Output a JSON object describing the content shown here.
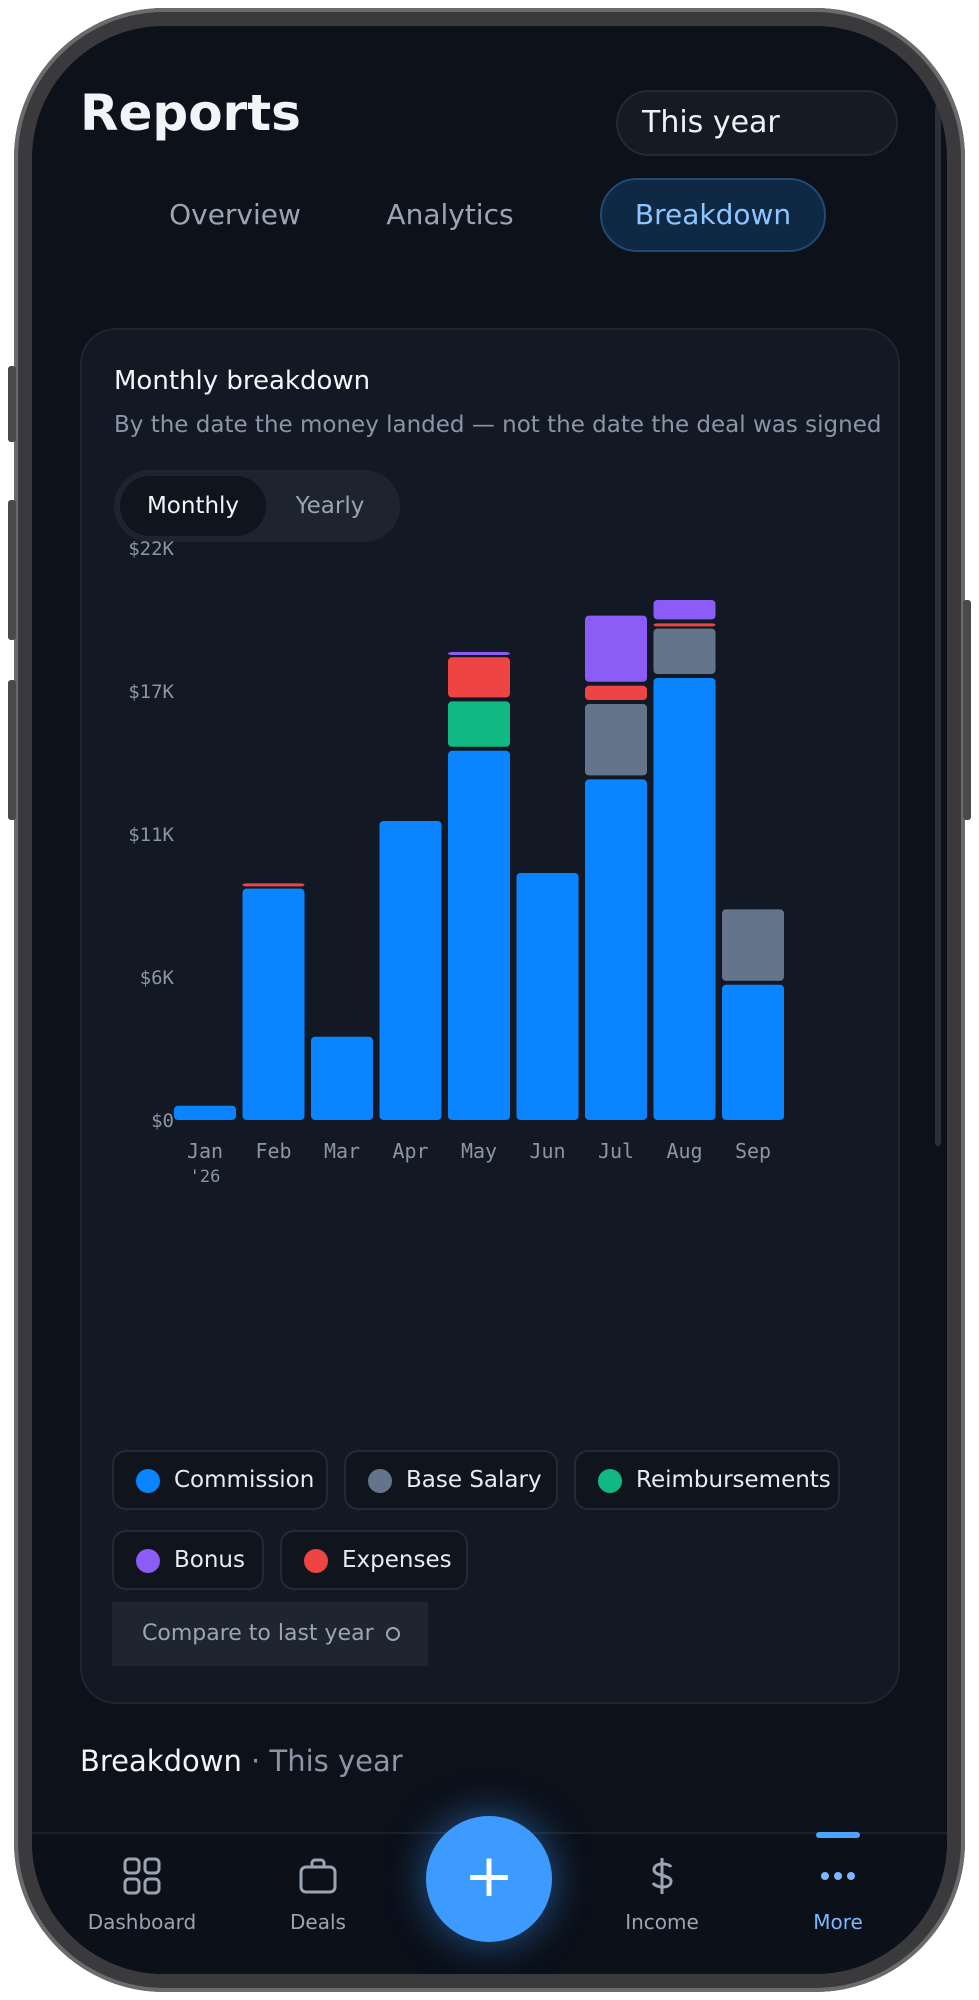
{
  "header": {
    "title": "Reports",
    "range": "This year"
  },
  "tabs": [
    {
      "label": "Overview",
      "active": false
    },
    {
      "label": "Analytics",
      "active": false
    },
    {
      "label": "Breakdown",
      "active": true
    }
  ],
  "card": {
    "title": "Monthly breakdown",
    "subtitle": "By the date the money landed — not the date the deal was signed",
    "segments": [
      "Monthly",
      "Yearly"
    ],
    "compare_label": "Compare to last year"
  },
  "legend": [
    {
      "label": "Commission",
      "color": "#0a84ff"
    },
    {
      "label": "Base Salary",
      "color": "#64748b"
    },
    {
      "label": "Reimbursements",
      "color": "#10b981"
    },
    {
      "label": "Bonus",
      "color": "#8b5cf6"
    },
    {
      "label": "Expenses",
      "color": "#ef4444"
    }
  ],
  "chart_data": {
    "type": "bar",
    "stacked": true,
    "categories": [
      "Jan",
      "Feb",
      "Mar",
      "Apr",
      "May",
      "Jun",
      "Jul",
      "Aug",
      "Sep"
    ],
    "x_sublabel": "'26",
    "y_ticks": [
      "$0",
      "$6K",
      "$11K",
      "$17K",
      "$22K"
    ],
    "ylim": [
      0,
      22000
    ],
    "series": [
      {
        "name": "Commission",
        "color": "#0a84ff",
        "values": [
          550,
          8900,
          3200,
          11500,
          14200,
          9500,
          13100,
          17000,
          5200
        ]
      },
      {
        "name": "Base Salary",
        "color": "#64748b",
        "values": [
          0,
          0,
          0,
          0,
          0,
          0,
          2900,
          1900,
          2900
        ]
      },
      {
        "name": "Reimbursements",
        "color": "#10b981",
        "values": [
          0,
          0,
          0,
          0,
          1900,
          0,
          0,
          0,
          0
        ]
      },
      {
        "name": "Expenses",
        "color": "#ef4444",
        "values": [
          0,
          200,
          0,
          0,
          1700,
          0,
          700,
          200,
          0
        ]
      },
      {
        "name": "Bonus",
        "color": "#8b5cf6",
        "values": [
          0,
          0,
          0,
          0,
          200,
          0,
          2700,
          900,
          0
        ]
      }
    ]
  },
  "section": {
    "title": "Breakdown",
    "separator": " · ",
    "subtitle": "This year"
  },
  "nav": [
    {
      "label": "Dashboard",
      "icon": "grid-icon"
    },
    {
      "label": "Deals",
      "icon": "briefcase-icon"
    },
    {
      "label": "Income",
      "icon": "dollar-icon"
    },
    {
      "label": "More",
      "icon": "more-dots-icon",
      "active": true
    }
  ],
  "fab": {
    "icon": "plus-icon",
    "glyph": "+"
  }
}
